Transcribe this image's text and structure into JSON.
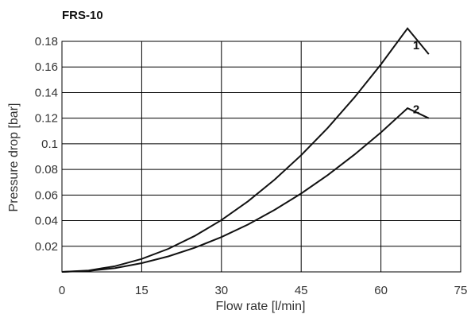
{
  "chart_data": {
    "type": "line",
    "title": "FRS-10",
    "xlabel": "Flow rate [l/min]",
    "ylabel": "Pressure drop [bar]",
    "xlim": [
      0,
      75
    ],
    "ylim": [
      0,
      0.18
    ],
    "x_ticks": [
      "0",
      "15",
      "30",
      "45",
      "60",
      "75"
    ],
    "y_ticks": [
      "0.02",
      "0.04",
      "0.06",
      "0.08",
      "0.1",
      "0.12",
      "0.14",
      "0.16",
      "0.18"
    ],
    "grid": true,
    "series": [
      {
        "name": "1",
        "x": [
          0,
          5,
          10,
          15,
          20,
          25,
          30,
          35,
          40,
          45,
          50,
          55,
          60,
          65,
          69
        ],
        "y": [
          0.0,
          0.0011,
          0.0045,
          0.0101,
          0.018,
          0.0281,
          0.0405,
          0.0551,
          0.072,
          0.0911,
          0.1125,
          0.1361,
          0.162,
          0.1901,
          0.17
        ]
      },
      {
        "name": "2",
        "x": [
          0,
          5,
          10,
          15,
          20,
          25,
          30,
          35,
          40,
          45,
          50,
          55,
          60,
          65,
          69
        ],
        "y": [
          0.0,
          0.0008,
          0.003,
          0.0068,
          0.0121,
          0.0189,
          0.0272,
          0.037,
          0.0484,
          0.0612,
          0.0756,
          0.0915,
          0.1089,
          0.1278,
          0.12
        ]
      }
    ]
  }
}
